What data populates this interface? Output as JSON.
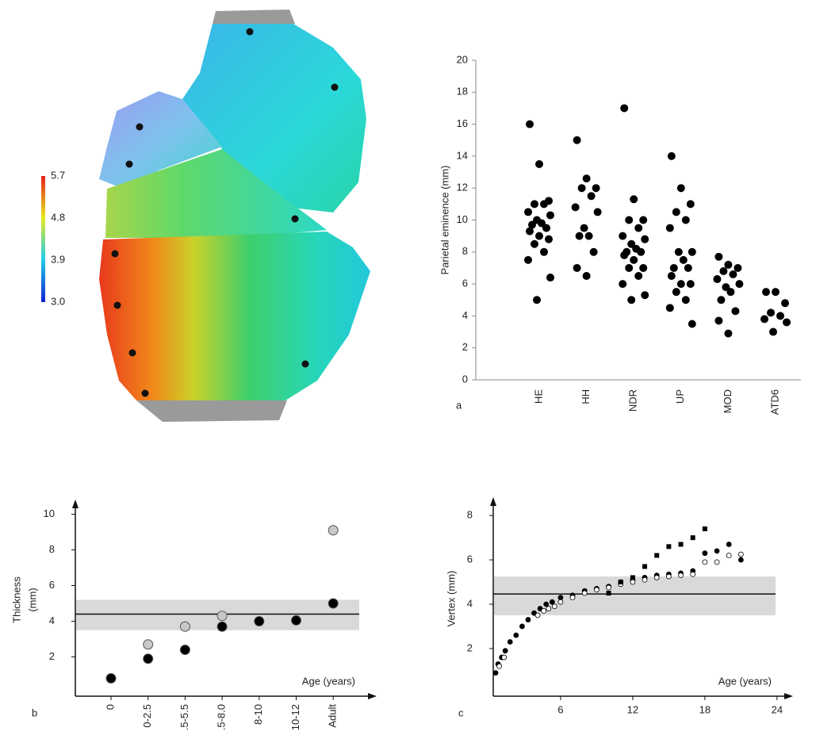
{
  "colorbar": {
    "lim": [
      3,
      5.7
    ],
    "ticks": [
      {
        "value": 3,
        "label": "3.0"
      },
      3.9,
      4.8,
      5.7
    ]
  },
  "chart_data": [
    {
      "type": "strip",
      "panel_label": "a",
      "y_label": "Parietal eminence (mm)",
      "color": "#000000",
      "categories": [
        "HE",
        "HH",
        "NDR",
        "UP",
        "MOD",
        "ATD6"
      ],
      "values": [
        [
          16,
          13.5,
          11.2,
          11,
          11,
          10.5,
          10.3,
          10,
          9.8,
          9.7,
          9.5,
          9.3,
          9,
          8.8,
          8.5,
          8,
          7.5,
          6.4,
          5
        ],
        [
          15,
          12.6,
          12,
          12,
          11.5,
          10.8,
          10.5,
          9.5,
          9,
          9,
          8,
          7,
          6.5
        ],
        [
          17,
          11.3,
          10,
          10,
          9.5,
          9,
          8.8,
          8.5,
          8.2,
          8,
          8,
          7.8,
          7.5,
          7,
          7,
          6.5,
          6,
          5.3,
          5
        ],
        [
          14,
          12,
          11,
          10.5,
          10,
          9.5,
          8,
          8,
          7.5,
          7,
          7,
          6.5,
          6,
          6,
          5.5,
          5,
          4.5,
          3.5
        ],
        [
          7.7,
          7.2,
          7,
          6.8,
          6.6,
          6.3,
          6,
          5.8,
          5.5,
          5,
          4.3,
          3.7,
          2.9
        ],
        [
          5.5,
          5.5,
          4.8,
          4.2,
          4,
          3.8,
          3.6,
          3
        ]
      ],
      "ylim": [
        0,
        20
      ],
      "yticks": [
        0,
        2,
        4,
        6,
        8,
        10,
        12,
        14,
        16,
        18,
        20
      ]
    },
    {
      "type": "dot",
      "panel_label": "b",
      "y_label": [
        "Thickness",
        "(mm)"
      ],
      "x_label": "Age (years)",
      "categories": [
        "0",
        "0-2.5",
        ".5-5.5",
        ".5-8.0",
        "8-10",
        "10-12",
        "Adult"
      ],
      "series": [
        {
          "color": "#000000",
          "values": [
            0.8,
            1.9,
            2.4,
            3.7,
            4.0,
            4.05,
            5.0
          ]
        },
        {
          "color": "#c8c8c8",
          "values": [
            null,
            2.7,
            3.7,
            4.3,
            null,
            null,
            9.1
          ]
        }
      ],
      "band": [
        3.5,
        5.2
      ],
      "reference": 4.4,
      "ylim": [
        -0.2,
        10.6
      ],
      "yticks": [
        2,
        4,
        6,
        8,
        10
      ]
    },
    {
      "type": "scatter",
      "panel_label": "c",
      "y_label": "Vertex (mm)",
      "x_label": "Age (years)",
      "series": [
        {
          "marker": "circle",
          "color": "#000000",
          "x": [
            0.6,
            0.8,
            1.1,
            1.4,
            1.8,
            2.3,
            2.8,
            3.3,
            3.8,
            4.3,
            4.8,
            5.3,
            6,
            7,
            8,
            9,
            10,
            11,
            12,
            13,
            14,
            15,
            16,
            17,
            18,
            19,
            20,
            21
          ],
          "values": [
            0.9,
            1.3,
            1.6,
            1.9,
            2.3,
            2.6,
            3.0,
            3.3,
            3.6,
            3.8,
            4.0,
            4.1,
            4.3,
            4.4,
            4.6,
            4.7,
            4.8,
            5.0,
            5.1,
            5.2,
            5.3,
            5.35,
            5.4,
            5.5,
            6.3,
            6.4,
            6.7,
            6.0
          ]
        },
        {
          "marker": "open-circle",
          "color": "#000000",
          "x": [
            0.9,
            1.3,
            4.1,
            4.6,
            5,
            5.5,
            6,
            7,
            8,
            9,
            10,
            11,
            12,
            13,
            14,
            15,
            16,
            17,
            18,
            19,
            20,
            21
          ],
          "values": [
            1.2,
            1.6,
            3.5,
            3.7,
            3.8,
            3.9,
            4.1,
            4.3,
            4.5,
            4.65,
            4.75,
            4.9,
            5.0,
            5.1,
            5.2,
            5.25,
            5.3,
            5.35,
            5.9,
            5.9,
            6.2,
            6.25
          ]
        },
        {
          "marker": "square",
          "color": "#000000",
          "x": [
            10,
            11,
            12,
            13,
            14,
            15,
            16,
            17,
            18
          ],
          "values": [
            4.5,
            5.0,
            5.2,
            5.7,
            6.2,
            6.6,
            6.7,
            7.0,
            7.4
          ]
        }
      ],
      "band": [
        3.5,
        5.25
      ],
      "reference": 4.46,
      "xlim": [
        0.4,
        25
      ],
      "xticks": [
        6,
        12,
        18,
        24
      ],
      "ylim": [
        -0.15,
        8.65
      ],
      "yticks": [
        2,
        4,
        6,
        8
      ]
    }
  ]
}
